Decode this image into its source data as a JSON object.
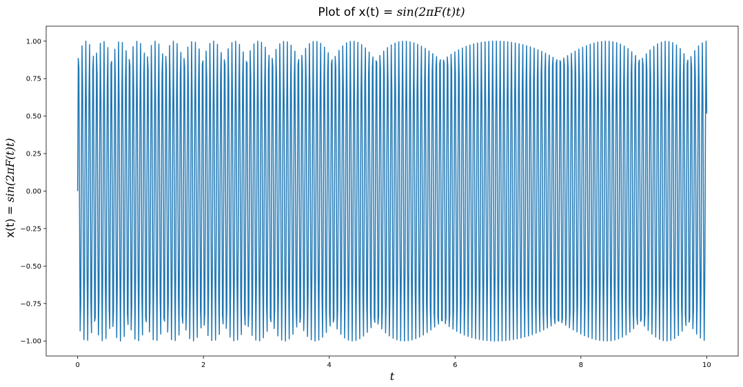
{
  "chart_data": {
    "type": "line",
    "title_prefix": "Plot of x(t) = ",
    "title_math": "sin(2πF(t)t)",
    "xlabel": "t",
    "ylabel_prefix": "x(t) = ",
    "ylabel_math": "sin(2πF(t)t)",
    "xlim": [
      -0.5,
      10.5
    ],
    "ylim": [
      -1.1,
      1.1
    ],
    "x_ticks": [
      0,
      2,
      4,
      6,
      8,
      10
    ],
    "x_tick_labels": [
      "0",
      "2",
      "4",
      "6",
      "8",
      "10"
    ],
    "y_ticks": [
      -1.0,
      -0.75,
      -0.5,
      -0.25,
      0.0,
      0.25,
      0.5,
      0.75,
      1.0
    ],
    "y_tick_labels": [
      "−1.00",
      "−0.75",
      "−0.50",
      "−0.25",
      "0.00",
      "0.25",
      "0.50",
      "0.75",
      "1.00"
    ],
    "grid": false,
    "series": [
      {
        "color": "#1f77b4",
        "function": "sin(2*pi*F(t)*t)",
        "t_start": 0,
        "t_end": 10,
        "samples": 1000,
        "cycle_count_approx": 170
      }
    ]
  }
}
